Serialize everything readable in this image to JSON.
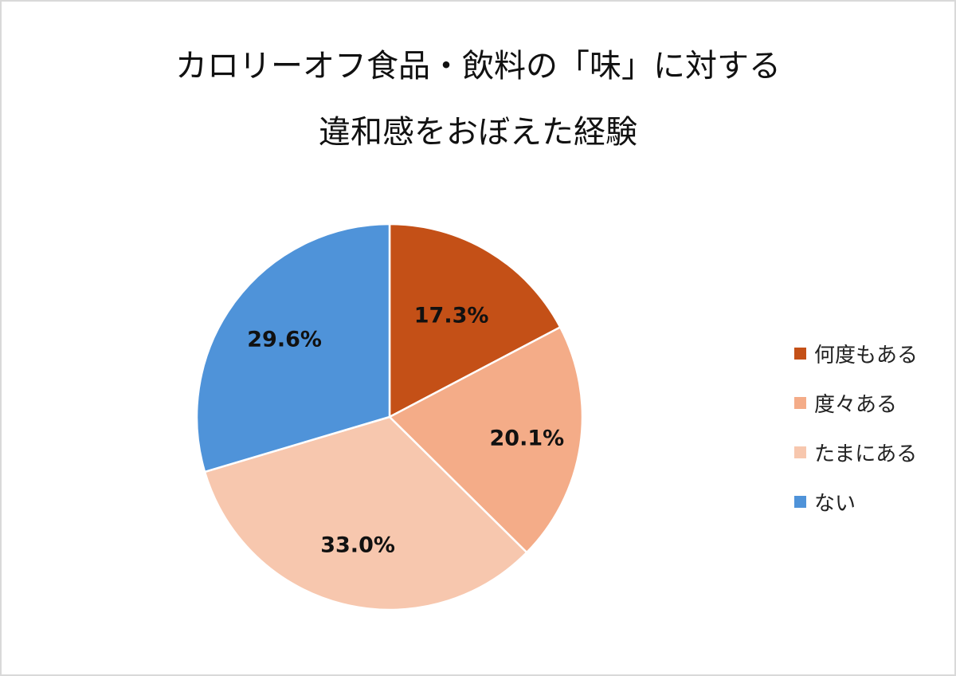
{
  "title": {
    "line1": "カロリーオフ食品・飲料の「味」に対する",
    "line2": "違和感をおぼえた経験"
  },
  "legend": [
    {
      "label": "何度もある",
      "color": "#c45017"
    },
    {
      "label": "度々ある",
      "color": "#f4ac88"
    },
    {
      "label": "たまにある",
      "color": "#f7c7ae"
    },
    {
      "label": "ない",
      "color": "#4f93d9"
    }
  ],
  "data_labels": [
    "17.3%",
    "20.1%",
    "33.0%",
    "29.6%"
  ],
  "chart_data": {
    "type": "pie",
    "title": "カロリーオフ食品・飲料の「味」に対する違和感をおぼえた経験",
    "categories": [
      "何度もある",
      "度々ある",
      "たまにある",
      "ない"
    ],
    "values": [
      17.3,
      20.1,
      33.0,
      29.6
    ],
    "unit": "%",
    "colors": [
      "#c45017",
      "#f4ac88",
      "#f7c7ae",
      "#4f93d9"
    ],
    "start_angle": "12 o'clock",
    "direction": "clockwise",
    "legend_position": "right"
  }
}
